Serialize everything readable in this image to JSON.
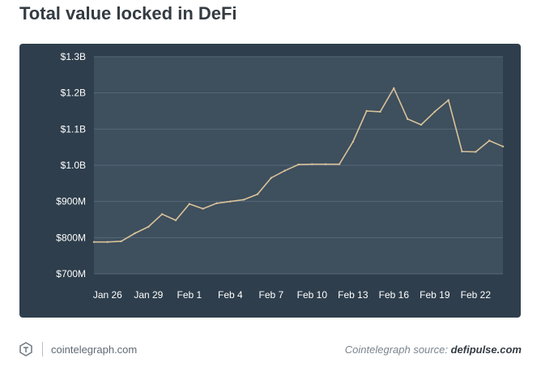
{
  "header": {
    "title": "Total value locked in DeFi"
  },
  "footer": {
    "logo_icon": "cointelegraph-logo-icon",
    "site": "cointelegraph.com",
    "source_prefix": "Cointelegraph source: ",
    "source_name": "defipulse.com"
  },
  "colors": {
    "panel_background": "#2e3e4c",
    "plot_background": "#3e4f5d",
    "line": "#d9c29a",
    "tick_text": "#ffffff"
  },
  "chart_data": {
    "type": "line",
    "title": "Total value locked in DeFi",
    "xlabel": "",
    "ylabel": "",
    "x_ticks": [
      "Jan 26",
      "Jan 29",
      "Feb 1",
      "Feb 4",
      "Feb 7",
      "Feb 10",
      "Feb 13",
      "Feb 16",
      "Feb 19",
      "Feb 22"
    ],
    "y_ticks": [
      "$700M",
      "$800M",
      "$900M",
      "$1.0B",
      "$1.1B",
      "$1.2B",
      "$1.3B"
    ],
    "ylim": [
      700,
      1300
    ],
    "y_unit": "$M",
    "grid": "horizontal",
    "legend": "none",
    "series": [
      {
        "x": [
          "Jan 25",
          "Jan 26",
          "Jan 27",
          "Jan 28",
          "Jan 29",
          "Jan 30",
          "Jan 31",
          "Feb 1",
          "Feb 2",
          "Feb 3",
          "Feb 4",
          "Feb 5",
          "Feb 6",
          "Feb 7",
          "Feb 8",
          "Feb 9",
          "Feb 10",
          "Feb 11",
          "Feb 12",
          "Feb 13",
          "Feb 14",
          "Feb 15",
          "Feb 16",
          "Feb 17",
          "Feb 18",
          "Feb 19",
          "Feb 20",
          "Feb 21",
          "Feb 22",
          "Feb 23",
          "Feb 24"
        ],
        "values": [
          788,
          788,
          790,
          812,
          830,
          865,
          848,
          893,
          880,
          895,
          900,
          905,
          920,
          965,
          985,
          1002,
          1003,
          1003,
          1003,
          1065,
          1150,
          1148,
          1213,
          1128,
          1112,
          1148,
          1180,
          1038,
          1037,
          1068,
          1052
        ]
      }
    ]
  }
}
